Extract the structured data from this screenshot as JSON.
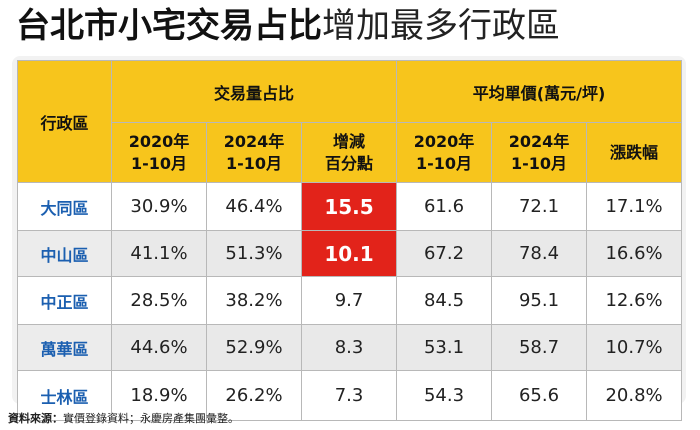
{
  "title": {
    "bold": "台北市小宅交易占比",
    "light": "增加最多行政區"
  },
  "header": {
    "district": "行政區",
    "group1": "交易量占比",
    "group2": "平均單價(萬元/坪)",
    "sub": [
      {
        "line1": "2020年",
        "line2": "1-10月"
      },
      {
        "line1": "2024年",
        "line2": "1-10月"
      },
      {
        "line1": "增減",
        "line2": "百分點"
      },
      {
        "line1": "2020年",
        "line2": "1-10月"
      },
      {
        "line1": "2024年",
        "line2": "1-10月"
      },
      {
        "line1": "漲跌幅",
        "line2": ""
      }
    ]
  },
  "rows": [
    {
      "district": "大同區",
      "cells": [
        "30.9%",
        "46.4%",
        "15.5",
        "61.6",
        "72.1",
        "17.1%"
      ],
      "highlight": true
    },
    {
      "district": "中山區",
      "cells": [
        "41.1%",
        "51.3%",
        "10.1",
        "67.2",
        "78.4",
        "16.6%"
      ],
      "highlight": true
    },
    {
      "district": "中正區",
      "cells": [
        "28.5%",
        "38.2%",
        "9.7",
        "84.5",
        "95.1",
        "12.6%"
      ],
      "highlight": false
    },
    {
      "district": "萬華區",
      "cells": [
        "44.6%",
        "52.9%",
        "8.3",
        "53.1",
        "58.7",
        "10.7%"
      ],
      "highlight": false
    },
    {
      "district": "士林區",
      "cells": [
        "18.9%",
        "26.2%",
        "7.3",
        "54.3",
        "65.6",
        "20.8%"
      ],
      "highlight": false
    }
  ],
  "colors": {
    "header": "#f7c51c",
    "district_text": "#1b5fb0",
    "highlight": "#e2231a"
  },
  "footnote": {
    "label": "資料來源：",
    "text": "實價登錄資料；永慶房產集團彙整。"
  }
}
